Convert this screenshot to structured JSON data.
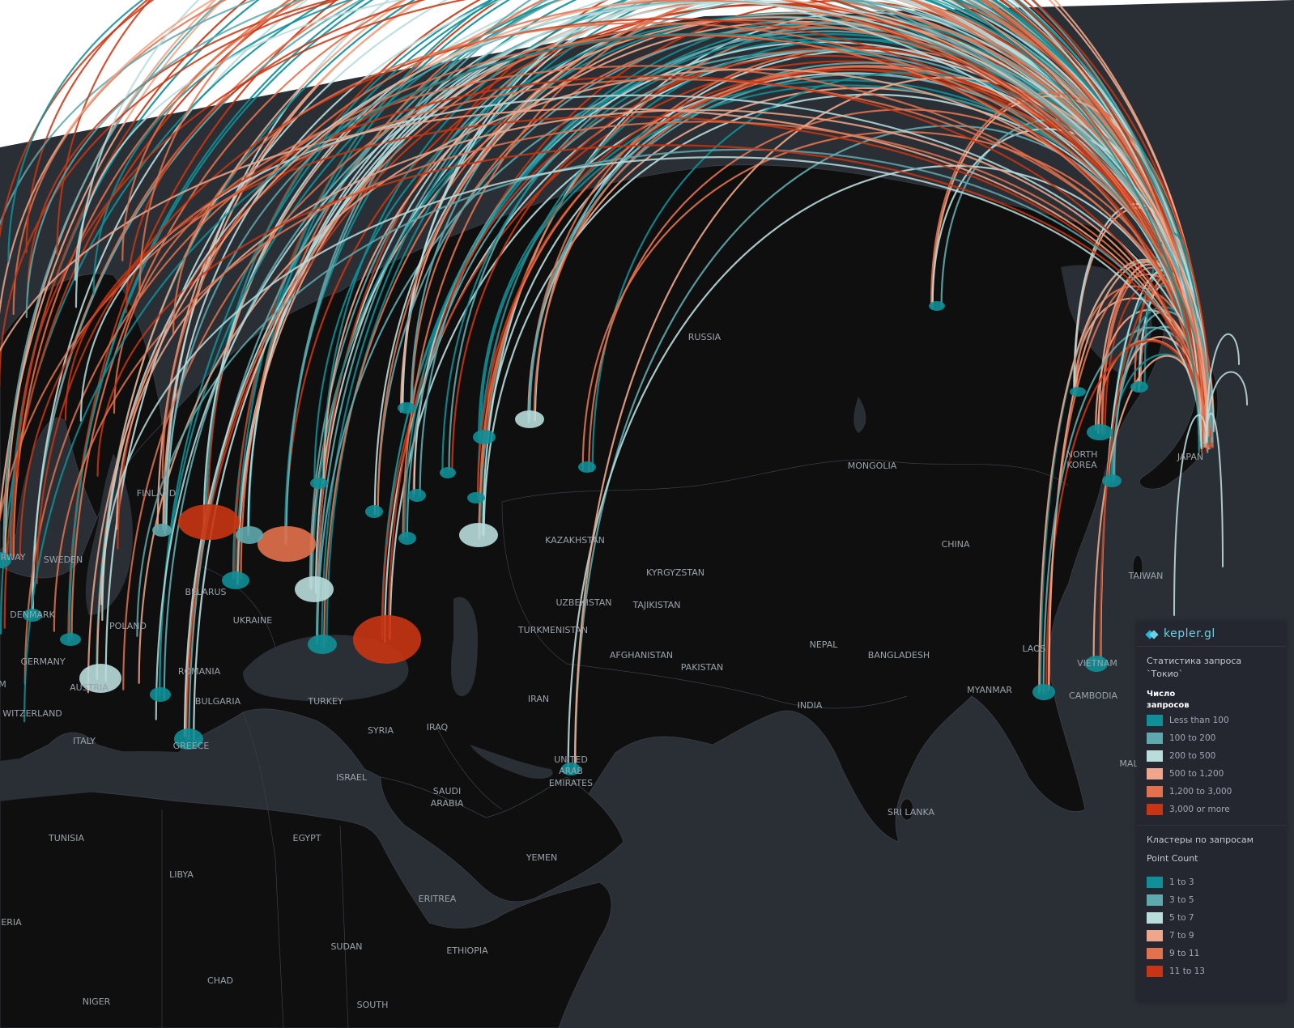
{
  "app": {
    "brand": "kepler.gl"
  },
  "map": {
    "background_color": "#ffffff",
    "land_color": "#0f0f0f",
    "water_color": "#2a2f36",
    "label_color": "#9aa3ab",
    "labels": [
      {
        "name": "RUSSIA",
        "key": "russia"
      },
      {
        "name": "MONGOLIA",
        "key": "mongolia"
      },
      {
        "name": "CHINA",
        "key": "china"
      },
      {
        "name": "KAZAKHSTAN",
        "key": "kazakhstan"
      },
      {
        "name": "KYRGYZSTAN",
        "key": "kyrgyzstan"
      },
      {
        "name": "UZBEKISTAN",
        "key": "uzbekistan"
      },
      {
        "name": "TAJIKISTAN",
        "key": "tajikistan"
      },
      {
        "name": "TURKMENISTAN",
        "key": "turkmenistan"
      },
      {
        "name": "AFGHANISTAN",
        "key": "afghanistan"
      },
      {
        "name": "PAKISTAN",
        "key": "pakistan"
      },
      {
        "name": "NEPAL",
        "key": "nepal"
      },
      {
        "name": "BANGLADESH",
        "key": "bangladesh"
      },
      {
        "name": "INDIA",
        "key": "india"
      },
      {
        "name": "MYANMAR",
        "key": "myanmar"
      },
      {
        "name": "LAOS",
        "key": "laos"
      },
      {
        "name": "VIETNAM",
        "key": "vietnam"
      },
      {
        "name": "CAMBODIA",
        "key": "cambodia"
      },
      {
        "name": "TAIWAN",
        "key": "taiwan"
      },
      {
        "name": "JAPAN",
        "key": "japan"
      },
      {
        "name": "NORTH",
        "key": "north_korea_1"
      },
      {
        "name": "KOREA",
        "key": "north_korea_2"
      },
      {
        "name": "SRI LANKA",
        "key": "sri_lanka"
      },
      {
        "name": "IRAN",
        "key": "iran"
      },
      {
        "name": "IRAQ",
        "key": "iraq"
      },
      {
        "name": "SYRIA",
        "key": "syria"
      },
      {
        "name": "TURKEY",
        "key": "turkey"
      },
      {
        "name": "ISRAEL",
        "key": "israel"
      },
      {
        "name": "SAUDI",
        "key": "saudi_1"
      },
      {
        "name": "ARABIA",
        "key": "saudi_2"
      },
      {
        "name": "UNITED",
        "key": "uae_1"
      },
      {
        "name": "ARAB",
        "key": "uae_2"
      },
      {
        "name": "EMIRATES",
        "key": "uae_3"
      },
      {
        "name": "YEMEN",
        "key": "yemen"
      },
      {
        "name": "EGYPT",
        "key": "egypt"
      },
      {
        "name": "LIBYA",
        "key": "libya"
      },
      {
        "name": "TUNISIA",
        "key": "tunisia"
      },
      {
        "name": "ERIA",
        "key": "algeria_partial"
      },
      {
        "name": "SUDAN",
        "key": "sudan"
      },
      {
        "name": "CHAD",
        "key": "chad"
      },
      {
        "name": "NIGER",
        "key": "niger"
      },
      {
        "name": "ERITREA",
        "key": "eritrea"
      },
      {
        "name": "ETHIOPIA",
        "key": "ethiopia"
      },
      {
        "name": "SOUTH",
        "key": "south_sudan_partial"
      },
      {
        "name": "UKRAINE",
        "key": "ukraine"
      },
      {
        "name": "BELARUS",
        "key": "belarus"
      },
      {
        "name": "POLAND",
        "key": "poland"
      },
      {
        "name": "GERMANY",
        "key": "germany"
      },
      {
        "name": "AUSTRIA",
        "key": "austria"
      },
      {
        "name": "ROMANIA",
        "key": "romania"
      },
      {
        "name": "BULGARIA",
        "key": "bulgaria"
      },
      {
        "name": "GREECE",
        "key": "greece"
      },
      {
        "name": "ITALY",
        "key": "italy"
      },
      {
        "name": "WITZERLAND",
        "key": "switzerland_partial"
      },
      {
        "name": "DENMARK",
        "key": "denmark"
      },
      {
        "name": "SWEDEN",
        "key": "sweden"
      },
      {
        "name": "RWAY",
        "key": "norway_partial"
      },
      {
        "name": "FINLAND",
        "key": "finland"
      },
      {
        "name": "MAL",
        "key": "malaysia_partial"
      },
      {
        "name": "M",
        "key": "edge_partial"
      }
    ]
  },
  "legend": {
    "layer1": {
      "title_line1": "Статистика запроса",
      "title_line2": "`Токио`",
      "field_line1": "Число",
      "field_line2": "запросов",
      "items": [
        {
          "label": "Less than 100",
          "color": "#0f8f97"
        },
        {
          "label": "100 to 200",
          "color": "#5fa8ad"
        },
        {
          "label": "200 to 500",
          "color": "#b9dcdc"
        },
        {
          "label": "500 to 1,200",
          "color": "#f0a68a"
        },
        {
          "label": "1,200 to 3,000",
          "color": "#e2714c"
        },
        {
          "label": "3,000 or more",
          "color": "#c93512"
        }
      ]
    },
    "layer2": {
      "title": "Кластеры по запросам",
      "field": "Point Count",
      "items": [
        {
          "label": "1 to 3",
          "color": "#0f8f97"
        },
        {
          "label": "3 to 5",
          "color": "#5fa8ad"
        },
        {
          "label": "5 to 7",
          "color": "#b9dcdc"
        },
        {
          "label": "7 to 9",
          "color": "#f0a68a"
        },
        {
          "label": "9 to 11",
          "color": "#e2714c"
        },
        {
          "label": "11 to 13",
          "color": "#c93512"
        }
      ]
    }
  }
}
